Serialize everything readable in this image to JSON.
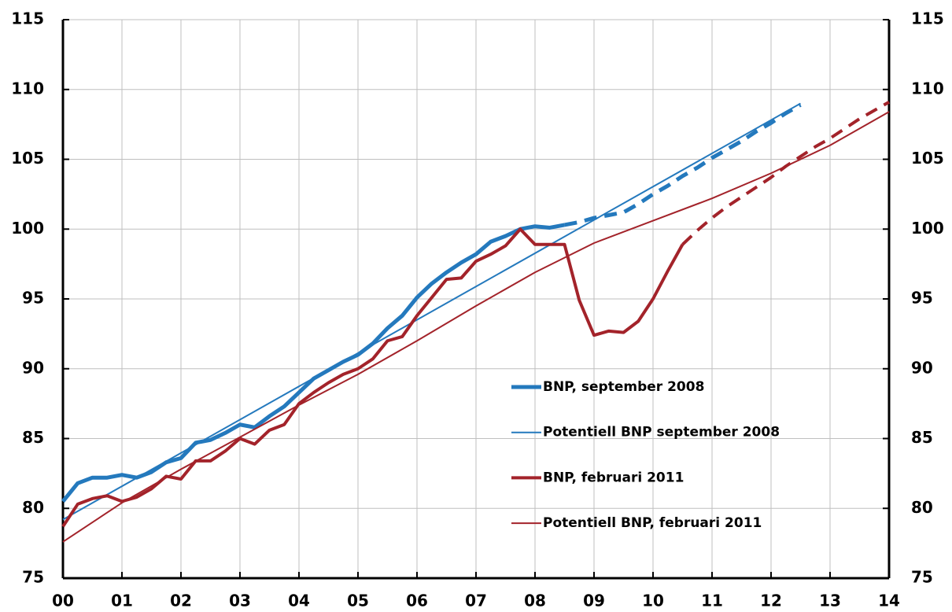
{
  "chart_data": {
    "type": "line",
    "xlim": [
      0,
      14
    ],
    "xticks": [
      {
        "value": 0,
        "label": "00"
      },
      {
        "value": 1,
        "label": "01"
      },
      {
        "value": 2,
        "label": "02"
      },
      {
        "value": 3,
        "label": "03"
      },
      {
        "value": 4,
        "label": "04"
      },
      {
        "value": 5,
        "label": "05"
      },
      {
        "value": 6,
        "label": "06"
      },
      {
        "value": 7,
        "label": "07"
      },
      {
        "value": 8,
        "label": "08"
      },
      {
        "value": 9,
        "label": "09"
      },
      10,
      11,
      12,
      13,
      14
    ],
    "ylim": [
      75,
      115
    ],
    "yticks": [
      75,
      80,
      85,
      90,
      95,
      100,
      105,
      110,
      115
    ],
    "y2lim": [
      75,
      115
    ],
    "y2ticks": [
      75,
      80,
      85,
      90,
      95,
      100,
      105,
      110,
      115
    ],
    "grid": true,
    "series": [
      {
        "name": "BNP, september 2008",
        "color": "#2479bd",
        "width": 5,
        "dashed_from": 8.5,
        "x": [
          0,
          0.25,
          0.5,
          0.75,
          1,
          1.25,
          1.5,
          1.75,
          2,
          2.25,
          2.5,
          2.75,
          3,
          3.25,
          3.5,
          3.75,
          4,
          4.25,
          4.5,
          4.75,
          5,
          5.25,
          5.5,
          5.75,
          6,
          6.25,
          6.5,
          6.75,
          7,
          7.25,
          7.5,
          7.75,
          8,
          8.25,
          8.5,
          8.75,
          9,
          9.25,
          9.5,
          9.75,
          10,
          10.25,
          10.5,
          10.75,
          11,
          11.25,
          11.5,
          11.75,
          12,
          12.25,
          12.5
        ],
        "values": [
          80.5,
          81.8,
          82.2,
          82.2,
          82.4,
          82.2,
          82.6,
          83.3,
          83.6,
          84.7,
          84.9,
          85.4,
          86.0,
          85.8,
          86.6,
          87.3,
          88.3,
          89.3,
          89.9,
          90.5,
          91.0,
          91.8,
          92.9,
          93.8,
          95.1,
          96.1,
          96.9,
          97.6,
          98.2,
          99.1,
          99.5,
          100.0,
          100.2,
          100.1,
          100.3,
          100.5,
          100.8,
          101.0,
          101.2,
          101.8,
          102.5,
          103.1,
          103.8,
          104.4,
          105.1,
          105.7,
          106.3,
          107.0,
          107.6,
          108.3,
          108.9
        ]
      },
      {
        "name": "Potentiell BNP september 2008",
        "color": "#2479bd",
        "width": 2,
        "x": [
          0,
          12.5
        ],
        "values": [
          79.2,
          109.0
        ]
      },
      {
        "name": "BNP, februari 2011",
        "color": "#a3232a",
        "width": 4,
        "dashed_from": 10.5,
        "x": [
          0,
          0.25,
          0.5,
          0.75,
          1,
          1.25,
          1.5,
          1.75,
          2,
          2.25,
          2.5,
          2.75,
          3,
          3.25,
          3.5,
          3.75,
          4,
          4.25,
          4.5,
          4.75,
          5,
          5.25,
          5.5,
          5.75,
          6,
          6.25,
          6.5,
          6.75,
          7,
          7.25,
          7.5,
          7.75,
          8,
          8.25,
          8.5,
          8.75,
          9,
          9.25,
          9.5,
          9.75,
          10,
          10.25,
          10.5,
          10.75,
          11,
          11.25,
          11.5,
          11.75,
          12,
          12.25,
          12.5,
          12.75,
          13,
          13.25,
          13.5,
          13.75,
          14
        ],
        "values": [
          78.7,
          80.3,
          80.7,
          80.9,
          80.5,
          80.8,
          81.4,
          82.3,
          82.1,
          83.4,
          83.4,
          84.1,
          85.0,
          84.6,
          85.6,
          86.0,
          87.5,
          88.3,
          89.0,
          89.6,
          90.0,
          90.7,
          92.0,
          92.3,
          93.8,
          95.1,
          96.4,
          96.5,
          97.7,
          98.2,
          98.8,
          100.0,
          98.9,
          98.9,
          98.9,
          94.9,
          92.4,
          92.7,
          92.6,
          93.4,
          95.0,
          97.0,
          98.9,
          99.9,
          100.8,
          101.6,
          102.3,
          103.0,
          103.7,
          104.5,
          105.2,
          105.9,
          106.5,
          107.2,
          107.9,
          108.5,
          109.1
        ]
      },
      {
        "name": "Potentiell BNP, februari 2011",
        "color": "#a3232a",
        "width": 2,
        "x": [
          0,
          1,
          2,
          3,
          4,
          5,
          6,
          7,
          8,
          9,
          10,
          11,
          12,
          13,
          14
        ],
        "values": [
          77.6,
          80.4,
          82.8,
          85.1,
          87.4,
          89.6,
          92.0,
          94.5,
          96.9,
          99.0,
          100.6,
          102.2,
          104.0,
          106.0,
          108.4
        ]
      }
    ]
  }
}
